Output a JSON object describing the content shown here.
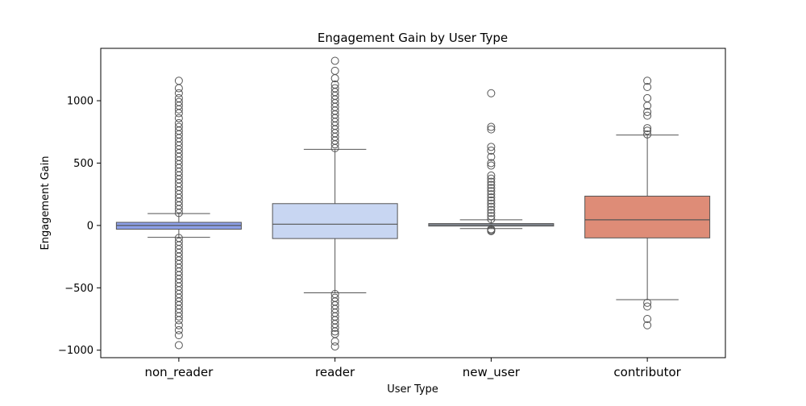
{
  "chart_data": {
    "type": "box",
    "title": "Engagement Gain by User Type",
    "xlabel": "User Type",
    "ylabel": "Engagement Gain",
    "ylim": [
      -1060,
      1420
    ],
    "yticks": [
      -1000,
      -500,
      0,
      500,
      1000
    ],
    "ytick_labels": [
      "−1000",
      "−500",
      "0",
      "500",
      "1000"
    ],
    "grid": false,
    "categories": [
      "non_reader",
      "reader",
      "new_user",
      "contributor"
    ],
    "boxes": [
      {
        "category": "non_reader",
        "color": "#8da0e8",
        "q1": -30,
        "median": 0,
        "q3": 25,
        "whisker_low": -95,
        "whisker_high": 95,
        "outliers_high": [
          100,
          130,
          160,
          190,
          220,
          250,
          280,
          310,
          340,
          370,
          400,
          430,
          460,
          490,
          520,
          550,
          580,
          610,
          640,
          670,
          700,
          730,
          760,
          790,
          820,
          860,
          900,
          930,
          960,
          990,
          1020,
          1060,
          1100,
          1160
        ],
        "outliers_low": [
          -100,
          -130,
          -160,
          -190,
          -220,
          -250,
          -280,
          -310,
          -340,
          -370,
          -400,
          -430,
          -460,
          -490,
          -520,
          -550,
          -580,
          -610,
          -640,
          -670,
          -700,
          -730,
          -760,
          -800,
          -840,
          -880,
          -960
        ]
      },
      {
        "category": "reader",
        "color": "#c8d6f2",
        "q1": -105,
        "median": 10,
        "q3": 175,
        "whisker_low": -540,
        "whisker_high": 610,
        "outliers_high": [
          620,
          650,
          680,
          710,
          740,
          770,
          800,
          830,
          860,
          890,
          920,
          950,
          980,
          1010,
          1040,
          1070,
          1100,
          1130,
          1180,
          1240,
          1320
        ],
        "outliers_low": [
          -550,
          -580,
          -610,
          -640,
          -670,
          -700,
          -730,
          -760,
          -790,
          -820,
          -850,
          -870,
          -930,
          -970
        ]
      },
      {
        "category": "new_user",
        "color": "#b9c7db",
        "q1": -5,
        "median": 5,
        "q3": 15,
        "whisker_low": -25,
        "whisker_high": 45,
        "outliers_high": [
          50,
          75,
          100,
          125,
          150,
          175,
          200,
          225,
          250,
          275,
          300,
          325,
          350,
          375,
          400,
          480,
          500,
          550,
          600,
          630,
          770,
          790,
          1060
        ],
        "outliers_low": [
          -30,
          -38,
          -45
        ]
      },
      {
        "category": "contributor",
        "color": "#de8c77",
        "q1": -100,
        "median": 45,
        "q3": 235,
        "whisker_low": -595,
        "whisker_high": 725,
        "outliers_high": [
          730,
          760,
          780,
          880,
          910,
          960,
          1020,
          1110,
          1160
        ],
        "outliers_low": [
          -620,
          -650,
          -750,
          -800
        ]
      }
    ]
  }
}
